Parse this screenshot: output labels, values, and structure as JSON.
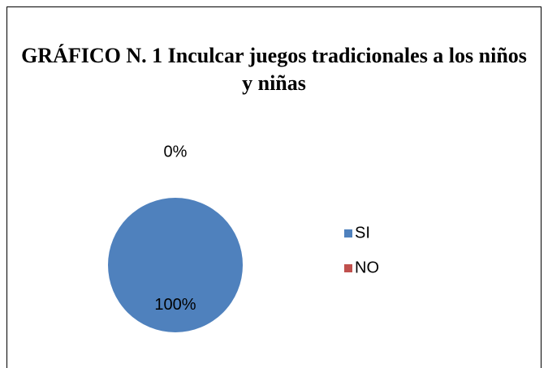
{
  "chart_data": {
    "type": "pie",
    "title": "GRÁFICO N. 1 Inculcar juegos tradicionales a los niños y niñas",
    "categories": [
      "SI",
      "NO"
    ],
    "values": [
      100,
      0
    ],
    "value_labels": [
      "100%",
      "0%"
    ],
    "colors": [
      "#4f81bd",
      "#c0504d"
    ],
    "legend": "right"
  }
}
